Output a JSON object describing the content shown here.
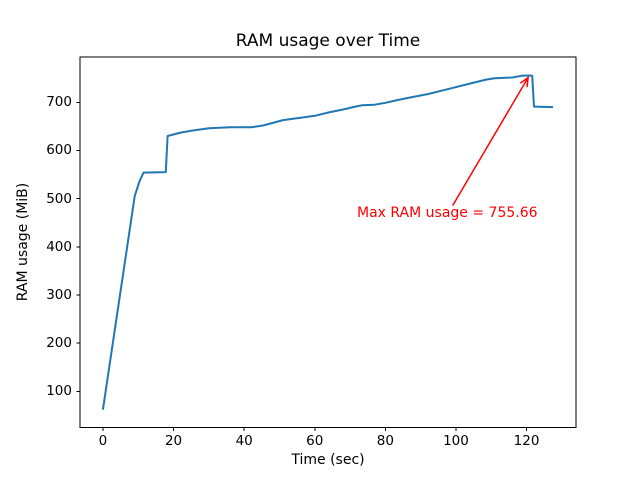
{
  "figure": {
    "background": "#ffffff",
    "spine_color": "#000000",
    "text_color": "#000000"
  },
  "chart_data": {
    "type": "line",
    "title": "RAM usage over Time",
    "xlabel": "Time (sec)",
    "ylabel": "RAM usage (MiB)",
    "xlim": [
      -6.5,
      134
    ],
    "ylim": [
      25,
      794
    ],
    "xticks": [
      0,
      20,
      40,
      60,
      80,
      100,
      120
    ],
    "yticks": [
      100,
      200,
      300,
      400,
      500,
      600,
      700
    ],
    "grid": false,
    "legend": null,
    "series": [
      {
        "name": "RAM usage",
        "color": "#1f77b4",
        "x": [
          0,
          9,
          10.3,
          11.5,
          17.8,
          18.3,
          22,
          26,
          30,
          36,
          42,
          45.5,
          51,
          56,
          60,
          64,
          68,
          71.5,
          73.5,
          77,
          80,
          83,
          87,
          92,
          97.5,
          103.5,
          108.5,
          111,
          116,
          118.5,
          120.8,
          121.6,
          122.1,
          127.5
        ],
        "y": [
          62,
          505,
          535,
          554,
          555,
          630,
          637,
          642,
          646,
          648,
          648,
          652,
          663,
          668,
          672,
          679,
          685,
          691,
          694,
          695,
          699,
          704,
          710,
          717,
          727,
          738,
          747,
          750,
          751.5,
          755,
          755.66,
          755,
          691,
          690
        ]
      }
    ],
    "annotation": {
      "text": "Max RAM usage = 755.66",
      "color": "#ff0000",
      "max_value": 755.66,
      "point_xy": [
        120.8,
        755.66
      ]
    }
  }
}
